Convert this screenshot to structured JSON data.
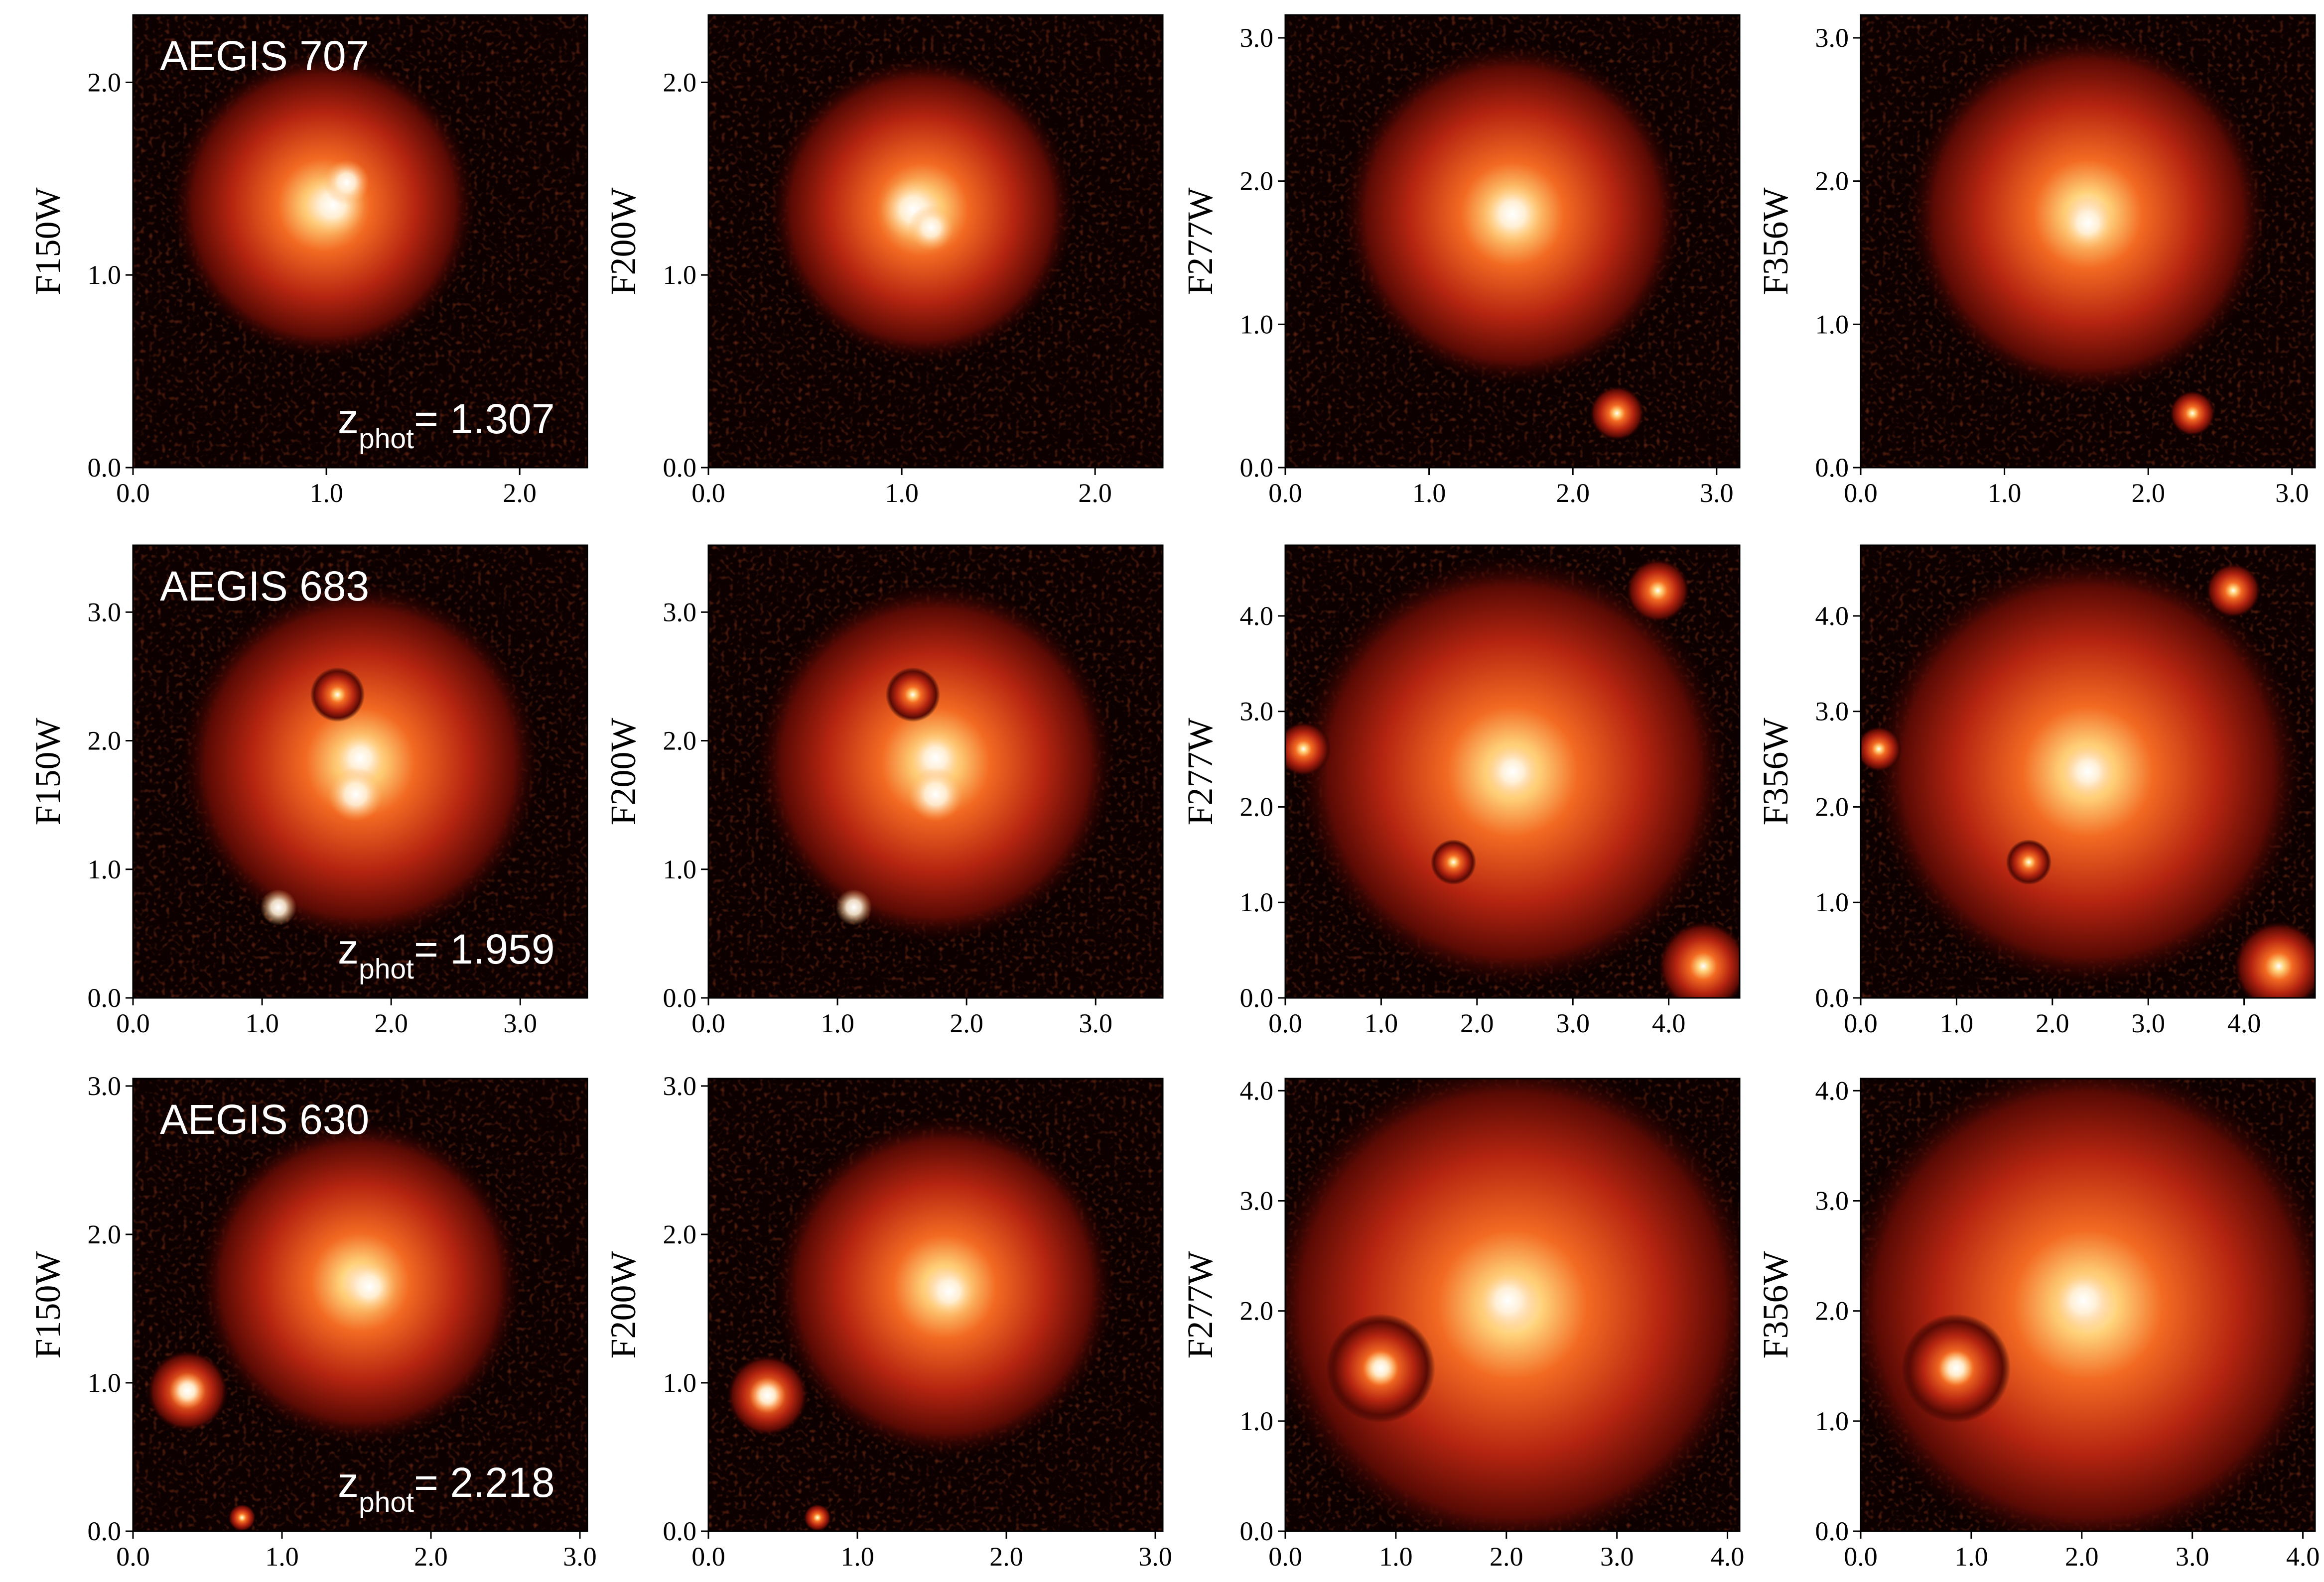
{
  "chart_data": [
    {
      "type": "image",
      "ylabel": "F150W",
      "annotation": "AEGIS 707",
      "zphot_symbol": "z",
      "zphot_subscript": "phot",
      "zphot_text": "= 1.307",
      "xlim": [
        0,
        2.35
      ],
      "ylim": [
        0,
        2.35
      ],
      "xticks": [
        {
          "value": 0,
          "label": "0.0"
        },
        {
          "value": 1,
          "label": "1.0"
        },
        {
          "value": 2,
          "label": "2.0"
        }
      ],
      "yticks": [
        {
          "value": 0,
          "label": "0.0"
        },
        {
          "value": 1,
          "label": "1.0"
        },
        {
          "value": 2,
          "label": "2.0"
        }
      ]
    },
    {
      "type": "image",
      "ylabel": "F200W",
      "xlim": [
        0,
        2.35
      ],
      "ylim": [
        0,
        2.35
      ],
      "xticks": [
        {
          "value": 0,
          "label": "0.0"
        },
        {
          "value": 1,
          "label": "1.0"
        },
        {
          "value": 2,
          "label": "2.0"
        }
      ],
      "yticks": [
        {
          "value": 0,
          "label": "0.0"
        },
        {
          "value": 1,
          "label": "1.0"
        },
        {
          "value": 2,
          "label": "2.0"
        }
      ]
    },
    {
      "type": "image",
      "ylabel": "F277W",
      "xlim": [
        0,
        3.16
      ],
      "ylim": [
        0,
        3.16
      ],
      "xticks": [
        {
          "value": 0,
          "label": "0.0"
        },
        {
          "value": 1,
          "label": "1.0"
        },
        {
          "value": 2,
          "label": "2.0"
        },
        {
          "value": 3,
          "label": "3.0"
        }
      ],
      "yticks": [
        {
          "value": 0,
          "label": "0.0"
        },
        {
          "value": 1,
          "label": "1.0"
        },
        {
          "value": 2,
          "label": "2.0"
        },
        {
          "value": 3,
          "label": "3.0"
        }
      ]
    },
    {
      "type": "image",
      "ylabel": "F356W",
      "xlim": [
        0,
        3.16
      ],
      "ylim": [
        0,
        3.16
      ],
      "xticks": [
        {
          "value": 0,
          "label": "0.0"
        },
        {
          "value": 1,
          "label": "1.0"
        },
        {
          "value": 2,
          "label": "2.0"
        },
        {
          "value": 3,
          "label": "3.0"
        }
      ],
      "yticks": [
        {
          "value": 0,
          "label": "0.0"
        },
        {
          "value": 1,
          "label": "1.0"
        },
        {
          "value": 2,
          "label": "2.0"
        },
        {
          "value": 3,
          "label": "3.0"
        }
      ]
    },
    {
      "type": "image",
      "ylabel": "F150W",
      "annotation": "AEGIS 683",
      "zphot_symbol": "z",
      "zphot_subscript": "phot",
      "zphot_text": "= 1.959",
      "xlim": [
        0,
        3.52
      ],
      "ylim": [
        0,
        3.52
      ],
      "xticks": [
        {
          "value": 0,
          "label": "0.0"
        },
        {
          "value": 1,
          "label": "1.0"
        },
        {
          "value": 2,
          "label": "2.0"
        },
        {
          "value": 3,
          "label": "3.0"
        }
      ],
      "yticks": [
        {
          "value": 0,
          "label": "0.0"
        },
        {
          "value": 1,
          "label": "1.0"
        },
        {
          "value": 2,
          "label": "2.0"
        },
        {
          "value": 3,
          "label": "3.0"
        }
      ]
    },
    {
      "type": "image",
      "ylabel": "F200W",
      "xlim": [
        0,
        3.52
      ],
      "ylim": [
        0,
        3.52
      ],
      "xticks": [
        {
          "value": 0,
          "label": "0.0"
        },
        {
          "value": 1,
          "label": "1.0"
        },
        {
          "value": 2,
          "label": "2.0"
        },
        {
          "value": 3,
          "label": "3.0"
        }
      ],
      "yticks": [
        {
          "value": 0,
          "label": "0.0"
        },
        {
          "value": 1,
          "label": "1.0"
        },
        {
          "value": 2,
          "label": "2.0"
        },
        {
          "value": 3,
          "label": "3.0"
        }
      ]
    },
    {
      "type": "image",
      "ylabel": "F277W",
      "xlim": [
        0,
        4.74
      ],
      "ylim": [
        0,
        4.74
      ],
      "xticks": [
        {
          "value": 0,
          "label": "0.0"
        },
        {
          "value": 1,
          "label": "1.0"
        },
        {
          "value": 2,
          "label": "2.0"
        },
        {
          "value": 3,
          "label": "3.0"
        },
        {
          "value": 4,
          "label": "4.0"
        }
      ],
      "yticks": [
        {
          "value": 0,
          "label": "0.0"
        },
        {
          "value": 1,
          "label": "1.0"
        },
        {
          "value": 2,
          "label": "2.0"
        },
        {
          "value": 3,
          "label": "3.0"
        },
        {
          "value": 4,
          "label": "4.0"
        }
      ]
    },
    {
      "type": "image",
      "ylabel": "F356W",
      "xlim": [
        0,
        4.74
      ],
      "ylim": [
        0,
        4.74
      ],
      "xticks": [
        {
          "value": 0,
          "label": "0.0"
        },
        {
          "value": 1,
          "label": "1.0"
        },
        {
          "value": 2,
          "label": "2.0"
        },
        {
          "value": 3,
          "label": "3.0"
        },
        {
          "value": 4,
          "label": "4.0"
        }
      ],
      "yticks": [
        {
          "value": 0,
          "label": "0.0"
        },
        {
          "value": 1,
          "label": "1.0"
        },
        {
          "value": 2,
          "label": "2.0"
        },
        {
          "value": 3,
          "label": "3.0"
        },
        {
          "value": 4,
          "label": "4.0"
        }
      ]
    },
    {
      "type": "image",
      "ylabel": "F150W",
      "annotation": "AEGIS 630",
      "zphot_symbol": "z",
      "zphot_subscript": "phot",
      "zphot_text": "= 2.218",
      "xlim": [
        0,
        3.05
      ],
      "ylim": [
        0,
        3.05
      ],
      "xticks": [
        {
          "value": 0,
          "label": "0.0"
        },
        {
          "value": 1,
          "label": "1.0"
        },
        {
          "value": 2,
          "label": "2.0"
        },
        {
          "value": 3,
          "label": "3.0"
        }
      ],
      "yticks": [
        {
          "value": 0,
          "label": "0.0"
        },
        {
          "value": 1,
          "label": "1.0"
        },
        {
          "value": 2,
          "label": "2.0"
        },
        {
          "value": 3,
          "label": "3.0"
        }
      ]
    },
    {
      "type": "image",
      "ylabel": "F200W",
      "xlim": [
        0,
        3.05
      ],
      "ylim": [
        0,
        3.05
      ],
      "xticks": [
        {
          "value": 0,
          "label": "0.0"
        },
        {
          "value": 1,
          "label": "1.0"
        },
        {
          "value": 2,
          "label": "2.0"
        },
        {
          "value": 3,
          "label": "3.0"
        }
      ],
      "yticks": [
        {
          "value": 0,
          "label": "0.0"
        },
        {
          "value": 1,
          "label": "1.0"
        },
        {
          "value": 2,
          "label": "2.0"
        },
        {
          "value": 3,
          "label": "3.0"
        }
      ]
    },
    {
      "type": "image",
      "ylabel": "F277W",
      "xlim": [
        0,
        4.11
      ],
      "ylim": [
        0,
        4.11
      ],
      "xticks": [
        {
          "value": 0,
          "label": "0.0"
        },
        {
          "value": 1,
          "label": "1.0"
        },
        {
          "value": 2,
          "label": "2.0"
        },
        {
          "value": 3,
          "label": "3.0"
        },
        {
          "value": 4,
          "label": "4.0"
        }
      ],
      "yticks": [
        {
          "value": 0,
          "label": "0.0"
        },
        {
          "value": 1,
          "label": "1.0"
        },
        {
          "value": 2,
          "label": "2.0"
        },
        {
          "value": 3,
          "label": "3.0"
        },
        {
          "value": 4,
          "label": "4.0"
        }
      ]
    },
    {
      "type": "image",
      "ylabel": "F356W",
      "xlim": [
        0,
        4.11
      ],
      "ylim": [
        0,
        4.11
      ],
      "xticks": [
        {
          "value": 0,
          "label": "0.0"
        },
        {
          "value": 1,
          "label": "1.0"
        },
        {
          "value": 2,
          "label": "2.0"
        },
        {
          "value": 3,
          "label": "3.0"
        },
        {
          "value": 4,
          "label": "4.0"
        }
      ],
      "yticks": [
        {
          "value": 0,
          "label": "0.0"
        },
        {
          "value": 1,
          "label": "1.0"
        },
        {
          "value": 2,
          "label": "2.0"
        },
        {
          "value": 3,
          "label": "3.0"
        },
        {
          "value": 4,
          "label": "4.0"
        }
      ]
    }
  ]
}
